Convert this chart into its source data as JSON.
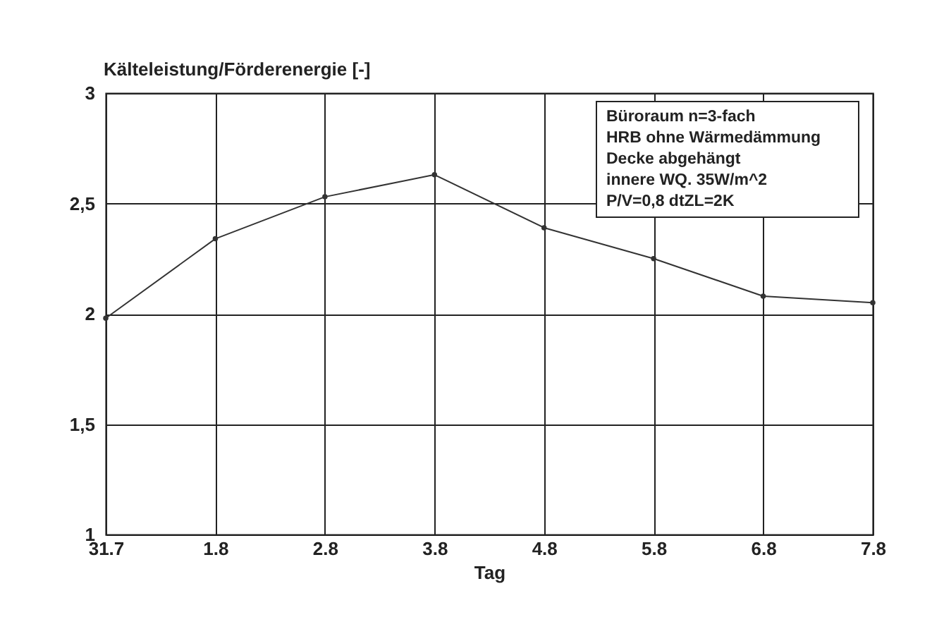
{
  "chart_data": {
    "type": "line",
    "xlabel": "Tag",
    "ylabel": "Kälteleistung/Förderenergie [-]",
    "categories": [
      "31.7",
      "1.8",
      "2.8",
      "3.8",
      "4.8",
      "5.8",
      "6.8",
      "7.8"
    ],
    "series": [
      {
        "color": "#333333",
        "values": [
          1.98,
          2.34,
          2.53,
          2.63,
          2.39,
          2.25,
          2.08,
          2.05
        ]
      }
    ],
    "ylim": [
      1,
      3
    ],
    "yticks": [
      1,
      {
        "value": 1.5,
        "label": "1,5"
      },
      2,
      {
        "value": 2.5,
        "label": "2,5"
      },
      3
    ],
    "grid": true,
    "marker": "circle",
    "line_style": "solid",
    "annotations": [
      "Büroraum n=3-fach",
      "HRB ohne Wärmedämmung",
      "Decke abgehängt",
      "innere WQ. 35W/m^2",
      "P/V=0,8     dtZL=2K"
    ]
  }
}
